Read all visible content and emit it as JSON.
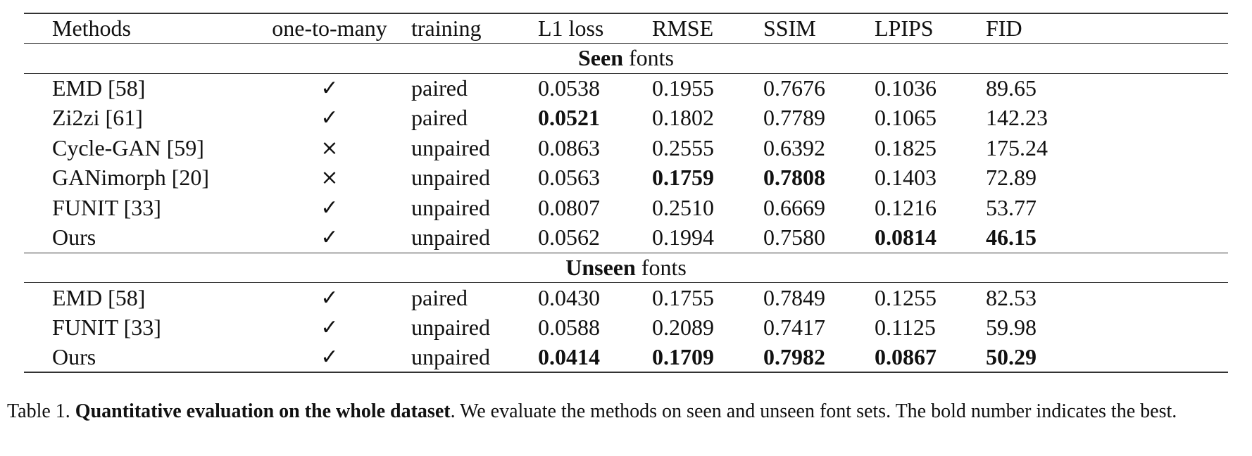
{
  "table": {
    "headers": [
      "Methods",
      "one-to-many",
      "training",
      "L1 loss",
      "RMSE",
      "SSIM",
      "LPIPS",
      "FID"
    ],
    "sections": [
      {
        "title_bold": "Seen",
        "title_rest": " fonts",
        "rows": [
          {
            "method": "EMD [58]",
            "one_to_many": "✓",
            "training": "paired",
            "l1": "0.0538",
            "rmse": "0.1955",
            "ssim": "0.7676",
            "lpips": "0.1036",
            "fid": "89.65"
          },
          {
            "method": "Zi2zi [61]",
            "one_to_many": "✓",
            "training": "paired",
            "l1": "0.0521",
            "rmse": "0.1802",
            "ssim": "0.7789",
            "lpips": "0.1065",
            "fid": "142.23"
          },
          {
            "method": "Cycle-GAN [59]",
            "one_to_many": "×",
            "training": "unpaired",
            "l1": "0.0863",
            "rmse": "0.2555",
            "ssim": "0.6392",
            "lpips": "0.1825",
            "fid": "175.24"
          },
          {
            "method": "GANimorph [20]",
            "one_to_many": "×",
            "training": "unpaired",
            "l1": "0.0563",
            "rmse": "0.1759",
            "ssim": "0.7808",
            "lpips": "0.1403",
            "fid": "72.89"
          },
          {
            "method": "FUNIT [33]",
            "one_to_many": "✓",
            "training": "unpaired",
            "l1": "0.0807",
            "rmse": "0.2510",
            "ssim": "0.6669",
            "lpips": "0.1216",
            "fid": "53.77"
          },
          {
            "method": "Ours",
            "one_to_many": "✓",
            "training": "unpaired",
            "l1": "0.0562",
            "rmse": "0.1994",
            "ssim": "0.7580",
            "lpips": "0.0814",
            "fid": "46.15"
          }
        ]
      },
      {
        "title_bold": "Unseen",
        "title_rest": " fonts",
        "rows": [
          {
            "method": "EMD [58]",
            "one_to_many": "✓",
            "training": "paired",
            "l1": "0.0430",
            "rmse": "0.1755",
            "ssim": "0.7849",
            "lpips": "0.1255",
            "fid": "82.53"
          },
          {
            "method": "FUNIT [33]",
            "one_to_many": "✓",
            "training": "unpaired",
            "l1": "0.0588",
            "rmse": "0.2089",
            "ssim": "0.7417",
            "lpips": "0.1125",
            "fid": "59.98"
          },
          {
            "method": "Ours",
            "one_to_many": "✓",
            "training": "unpaired",
            "l1": "0.0414",
            "rmse": "0.1709",
            "ssim": "0.7982",
            "lpips": "0.0867",
            "fid": "50.29"
          }
        ]
      }
    ]
  },
  "caption": {
    "label": "Table 1. ",
    "bold": "Quantitative evaluation on the whole dataset",
    "rest": ". We evaluate the methods on seen and unseen font sets. The bold number indicates the best."
  }
}
